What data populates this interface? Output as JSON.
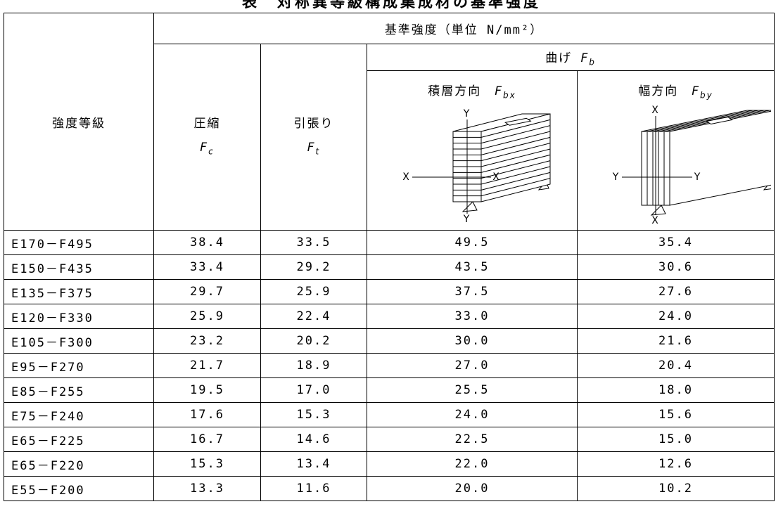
{
  "title": "表　対称異等級構成集成材の基準強度",
  "table": {
    "header": {
      "grade": "強度等級",
      "standard_strength": "基準強度（単位 N/mm²）",
      "compression": {
        "label": "圧縮",
        "symbol": "F",
        "sub": "c"
      },
      "tension": {
        "label": "引張り",
        "symbol": "F",
        "sub": "t"
      },
      "bending": {
        "label": "曲げ",
        "symbol": "F",
        "sub": "b"
      },
      "lamination_direction": {
        "label": "積層方向",
        "symbol": "F",
        "sub": "bx"
      },
      "width_direction": {
        "label": "幅方向",
        "symbol": "F",
        "sub": "by"
      }
    },
    "diagrams": [
      {
        "top": "Y",
        "bottom": "Y",
        "left": "X",
        "right": "X"
      },
      {
        "top": "X",
        "bottom": "X",
        "left": "Y",
        "right": "Y"
      }
    ],
    "rows": [
      [
        "E170－F495",
        "38.4",
        "33.5",
        "49.5",
        "35.4"
      ],
      [
        "E150－F435",
        "33.4",
        "29.2",
        "43.5",
        "30.6"
      ],
      [
        "E135－F375",
        "29.7",
        "25.9",
        "37.5",
        "27.6"
      ],
      [
        "E120－F330",
        "25.9",
        "22.4",
        "33.0",
        "24.0"
      ],
      [
        "E105－F300",
        "23.2",
        "20.2",
        "30.0",
        "21.6"
      ],
      [
        "E95－F270",
        "21.7",
        "18.9",
        "27.0",
        "20.4"
      ],
      [
        "E85－F255",
        "19.5",
        "17.0",
        "25.5",
        "18.0"
      ],
      [
        "E75－F240",
        "17.6",
        "15.3",
        "24.0",
        "15.6"
      ],
      [
        "E65－F225",
        "16.7",
        "14.6",
        "22.5",
        "15.0"
      ],
      [
        "E65－F220",
        "15.3",
        "13.4",
        "22.0",
        "12.6"
      ],
      [
        "E55－F200",
        "13.3",
        "11.6",
        "20.0",
        "10.2"
      ]
    ]
  }
}
